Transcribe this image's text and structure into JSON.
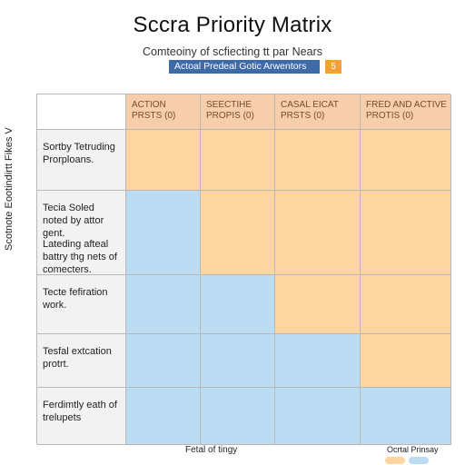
{
  "title": "Sccra Priority Matrix",
  "subtitle": "Comteoiny of scfiecting tt par Nears",
  "legend": {
    "label": "Actoal Predeal Gotic Arwentors",
    "badge": "5"
  },
  "y_axis_label": "Scotnote Eootindirtt Fikes V",
  "columns": [
    "ACTION PRSTS (0)",
    "SEECTIHE PROPIS (0)",
    "CASAL EICAT PRSTS (0)",
    "FRED AND ACTIVE PROTIS (0)"
  ],
  "rows": [
    {
      "label": "Sortby Tetruding Prorploans.",
      "label2": ""
    },
    {
      "label": "Tecia Soled noted by attor gent.",
      "label2": "Lateding afteal battry thg nets of comecters."
    },
    {
      "label": "Tecte fefiration work.",
      "label2": ""
    },
    {
      "label": "Tesfal extcation protrt.",
      "label2": ""
    },
    {
      "label": "Ferdimtly eath of trelupets",
      "label2": ""
    }
  ],
  "cells": [
    [
      "orange",
      "orange",
      "orange",
      "orange"
    ],
    [
      "blue",
      "orange",
      "orange",
      "orange"
    ],
    [
      "blue",
      "blue",
      "orange",
      "orange"
    ],
    [
      "blue",
      "blue",
      "blue",
      "orange"
    ],
    [
      "blue",
      "blue",
      "blue",
      "blue"
    ]
  ],
  "footer": {
    "center": "Fetal of tingy",
    "right": "Ocrtal Prinsay"
  },
  "colors": {
    "orange": "#fcd5a0",
    "blue": "#bcdcf3",
    "header": "#f6ceab",
    "accent": "#3f6aa8",
    "badge": "#f0a238"
  }
}
